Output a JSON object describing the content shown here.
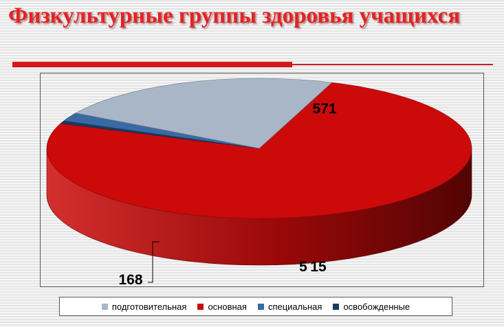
{
  "title": "Физкультурные группы здоровья учащихся",
  "colors": {
    "title": "#e52222",
    "accent_bar": "#d41818"
  },
  "chart_data": {
    "type": "pie",
    "style": "3d",
    "legend_position": "bottom",
    "series": [
      {
        "name": "подготовительная",
        "value": 168,
        "label": "168",
        "color": "#a8b6c8"
      },
      {
        "name": "основная",
        "value": 571,
        "label": "571",
        "color": "#cc0a0a"
      },
      {
        "name": "специальная",
        "value": 15,
        "label": "15",
        "color": "#3a6aa4"
      },
      {
        "name": "освобожденные",
        "value": 5,
        "label": "5",
        "color": "#1c3a66"
      }
    ]
  }
}
